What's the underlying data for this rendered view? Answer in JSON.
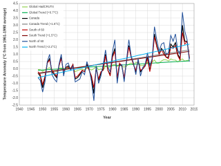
{
  "chart_data": {
    "type": "line",
    "x_label": "Year",
    "y_label": "Temperature Anomaly (°C from 1961-1990 average)",
    "xlim": [
      1940,
      2015
    ],
    "xticks": [
      1940,
      1945,
      1950,
      1955,
      1960,
      1965,
      1970,
      1975,
      1980,
      1985,
      1990,
      1995,
      2000,
      2005,
      2010,
      2015
    ],
    "ylim": [
      -2.5,
      4.5
    ],
    "yticks": [
      -2.5,
      {
        "value": -2,
        "label": "-2.0"
      },
      -1.5,
      {
        "value": -1,
        "label": "-1.0"
      },
      -0.5,
      {
        "value": 0,
        "label": "0.0"
      },
      0.5,
      {
        "value": 1,
        "label": "1.0"
      },
      1.5,
      {
        "value": 2,
        "label": "2.0"
      },
      2.5,
      {
        "value": 3,
        "label": "3.0"
      },
      3.5,
      {
        "value": 4,
        "label": "4.0"
      },
      4.5
    ],
    "grid": true,
    "legend": "upper left",
    "series": [
      {
        "name": "Global HadCRUT4",
        "color": "#92d050",
        "width": 1,
        "x": [
          1948,
          1949,
          1950,
          1951,
          1952,
          1953,
          1954,
          1955,
          1956,
          1957,
          1958,
          1959,
          1960,
          1961,
          1962,
          1963,
          1964,
          1965,
          1966,
          1967,
          1968,
          1969,
          1970,
          1971,
          1972,
          1973,
          1974,
          1975,
          1976,
          1977,
          1978,
          1979,
          1980,
          1981,
          1982,
          1983,
          1984,
          1985,
          1986,
          1987,
          1988,
          1989,
          1990,
          1991,
          1992,
          1993,
          1994,
          1995,
          1996,
          1997,
          1998,
          1999,
          2000,
          2001,
          2002,
          2003,
          2004,
          2005,
          2006,
          2007,
          2008,
          2009,
          2010,
          2011,
          2012,
          2013
        ],
        "values": [
          -0.05,
          -0.06,
          -0.17,
          -0.07,
          0.01,
          0.08,
          -0.12,
          -0.14,
          -0.2,
          0.05,
          0.06,
          0.03,
          -0.03,
          0.05,
          0.04,
          0.05,
          -0.2,
          -0.11,
          -0.06,
          -0.02,
          -0.07,
          0.05,
          0.0,
          -0.08,
          0.01,
          0.16,
          -0.07,
          -0.01,
          -0.1,
          0.18,
          0.07,
          0.16,
          0.26,
          0.32,
          0.14,
          0.31,
          0.16,
          0.12,
          0.18,
          0.33,
          0.4,
          0.27,
          0.45,
          0.41,
          0.22,
          0.23,
          0.32,
          0.45,
          0.33,
          0.47,
          0.61,
          0.38,
          0.39,
          0.54,
          0.63,
          0.62,
          0.54,
          0.68,
          0.61,
          0.6,
          0.47,
          0.6,
          0.68,
          0.53,
          0.58,
          0.6
        ]
      },
      {
        "name": "Global Trend (+0.7°C)",
        "color": "#00b050",
        "width": 1,
        "x": [
          1948,
          2013
        ],
        "values": [
          -0.1,
          0.55
        ]
      },
      {
        "name": "Canada",
        "color": "#000000",
        "width": 1.2,
        "x": [
          1948,
          1949,
          1950,
          1951,
          1952,
          1953,
          1954,
          1955,
          1956,
          1957,
          1958,
          1959,
          1960,
          1961,
          1962,
          1963,
          1964,
          1965,
          1966,
          1967,
          1968,
          1969,
          1970,
          1971,
          1972,
          1973,
          1974,
          1975,
          1976,
          1977,
          1978,
          1979,
          1980,
          1981,
          1982,
          1983,
          1984,
          1985,
          1986,
          1987,
          1988,
          1989,
          1990,
          1991,
          1992,
          1993,
          1994,
          1995,
          1996,
          1997,
          1998,
          1999,
          2000,
          2001,
          2002,
          2003,
          2004,
          2005,
          2006,
          2007,
          2008,
          2009,
          2010,
          2011,
          2012,
          2013
        ],
        "values": [
          -0.3,
          -0.5,
          -1.3,
          -0.6,
          0.4,
          0.7,
          -0.2,
          -0.4,
          -0.6,
          0.2,
          0.8,
          -0.3,
          0.1,
          0.2,
          0.0,
          0.3,
          -0.7,
          -0.6,
          -0.4,
          -0.1,
          -0.2,
          0.3,
          -0.1,
          -0.6,
          -1.7,
          0.1,
          -0.8,
          -0.3,
          0.0,
          1.0,
          -0.1,
          -0.4,
          0.9,
          1.4,
          -0.7,
          0.3,
          0.2,
          -0.7,
          0.5,
          1.6,
          0.8,
          0.3,
          -0.2,
          0.6,
          -0.2,
          0.0,
          0.2,
          0.8,
          -0.1,
          0.6,
          2.4,
          1.6,
          1.0,
          1.4,
          1.2,
          0.8,
          0.8,
          1.7,
          1.5,
          1.8,
          1.0,
          0.7,
          3.0,
          1.9,
          1.9,
          0.7
        ]
      },
      {
        "name": "Canada Trend (+1.6°C)",
        "color": "#808080",
        "width": 1,
        "x": [
          1948,
          2013
        ],
        "values": [
          -0.35,
          1.3
        ]
      },
      {
        "name": "South of 60",
        "color": "#c00000",
        "width": 1,
        "x": [
          1948,
          1949,
          1950,
          1951,
          1952,
          1953,
          1954,
          1955,
          1956,
          1957,
          1958,
          1959,
          1960,
          1961,
          1962,
          1963,
          1964,
          1965,
          1966,
          1967,
          1968,
          1969,
          1970,
          1971,
          1972,
          1973,
          1974,
          1975,
          1976,
          1977,
          1978,
          1979,
          1980,
          1981,
          1982,
          1983,
          1984,
          1985,
          1986,
          1987,
          1988,
          1989,
          1990,
          1991,
          1992,
          1993,
          1994,
          1995,
          1996,
          1997,
          1998,
          1999,
          2000,
          2001,
          2002,
          2003,
          2004,
          2005,
          2006,
          2007,
          2008,
          2009,
          2010,
          2011,
          2012,
          2013
        ],
        "values": [
          -0.2,
          -0.4,
          -1.1,
          -0.5,
          0.4,
          0.6,
          -0.1,
          -0.3,
          -0.5,
          0.2,
          0.7,
          -0.2,
          0.1,
          0.1,
          0.0,
          0.3,
          -0.6,
          -0.5,
          -0.3,
          -0.1,
          -0.2,
          0.2,
          -0.1,
          -0.5,
          -1.3,
          0.1,
          -0.7,
          -0.2,
          -0.1,
          0.9,
          -0.1,
          -0.5,
          0.8,
          1.2,
          -0.6,
          0.4,
          0.2,
          -0.6,
          0.5,
          1.5,
          0.8,
          0.3,
          -0.1,
          0.6,
          -0.1,
          0.0,
          0.2,
          0.7,
          -0.2,
          0.6,
          2.2,
          1.5,
          1.0,
          1.3,
          1.0,
          0.8,
          0.7,
          1.5,
          1.4,
          1.6,
          0.9,
          0.6,
          2.5,
          1.7,
          1.9,
          0.8
        ]
      },
      {
        "name": "South Trend (+1.5°C)",
        "color": "#7f0000",
        "width": 1,
        "x": [
          1948,
          2013
        ],
        "values": [
          -0.3,
          1.2
        ]
      },
      {
        "name": "North of 60",
        "color": "#1f4e99",
        "width": 1,
        "x": [
          1948,
          1949,
          1950,
          1951,
          1952,
          1953,
          1954,
          1955,
          1956,
          1957,
          1958,
          1959,
          1960,
          1961,
          1962,
          1963,
          1964,
          1965,
          1966,
          1967,
          1968,
          1969,
          1970,
          1971,
          1972,
          1973,
          1974,
          1975,
          1976,
          1977,
          1978,
          1979,
          1980,
          1981,
          1982,
          1983,
          1984,
          1985,
          1986,
          1987,
          1988,
          1989,
          1990,
          1991,
          1992,
          1993,
          1994,
          1995,
          1996,
          1997,
          1998,
          1999,
          2000,
          2001,
          2002,
          2003,
          2004,
          2005,
          2006,
          2007,
          2008,
          2009,
          2010,
          2011,
          2012,
          2013
        ],
        "values": [
          -0.6,
          -0.8,
          -1.6,
          -0.9,
          0.5,
          1.0,
          -0.4,
          -0.7,
          -0.9,
          0.3,
          1.0,
          -0.5,
          0.3,
          0.4,
          -0.1,
          0.2,
          -0.9,
          -0.8,
          -0.7,
          -0.2,
          -0.4,
          0.5,
          0.0,
          -0.9,
          -2.2,
          0.2,
          -1.0,
          -0.5,
          0.3,
          1.3,
          0.1,
          -0.2,
          1.2,
          2.0,
          -1.0,
          0.2,
          0.3,
          -0.9,
          0.6,
          2.0,
          0.9,
          0.4,
          -0.4,
          0.7,
          -0.5,
          0.1,
          0.3,
          1.1,
          0.2,
          0.7,
          2.9,
          2.0,
          1.2,
          1.7,
          1.8,
          1.0,
          1.1,
          2.3,
          1.9,
          2.4,
          1.3,
          1.0,
          3.9,
          2.6,
          2.0,
          0.5
        ]
      },
      {
        "name": "North Trend (+2.2°C)",
        "color": "#00b0f0",
        "width": 1,
        "x": [
          1948,
          2013
        ],
        "values": [
          -0.6,
          1.7
        ]
      }
    ]
  }
}
